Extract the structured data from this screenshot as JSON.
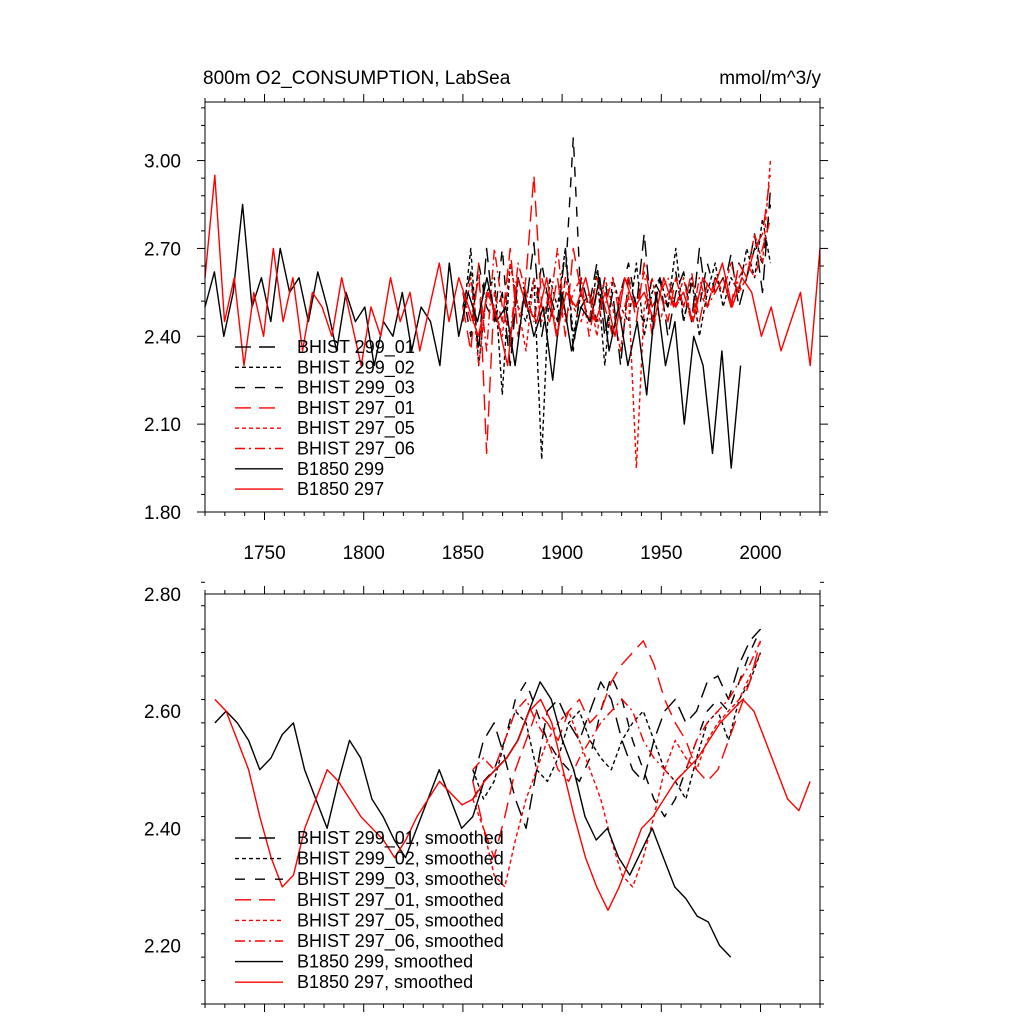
{
  "chart_data": [
    {
      "type": "line",
      "title": "800m O2_CONSUMPTION, LabSea",
      "units": "mmol/m^3/y",
      "xlim": [
        1720,
        2030
      ],
      "ylim": [
        1.8,
        3.2
      ],
      "x_ticks": [
        1750,
        1800,
        1850,
        1900,
        1950,
        2000
      ],
      "x_tick_labels": [
        "1750",
        "1800",
        "1850",
        "1900",
        "1950",
        "2000"
      ],
      "y_ticks": [
        1.8,
        2.1,
        2.4,
        2.7,
        3.0
      ],
      "y_tick_labels": [
        "1.80",
        "2.10",
        "2.40",
        "2.70",
        "3.00"
      ],
      "legend_position": "lower-left",
      "series": [
        {
          "name": "BHIST 299_01",
          "color": "#000000",
          "dash": "long-dash",
          "x_start": 1850,
          "x_end": 2005,
          "values": [
            2.5,
            2.62,
            2.35,
            2.7,
            2.45,
            2.55,
            2.3,
            2.6,
            2.5,
            2.72,
            2.4,
            2.55,
            2.45,
            2.7,
            2.35,
            2.6,
            2.5,
            2.65,
            2.4,
            2.55,
            2.3,
            2.6,
            2.5,
            2.75,
            2.45,
            2.6,
            2.4,
            2.55,
            2.62,
            2.45,
            2.7,
            2.5,
            2.6,
            2.55,
            2.68,
            2.5,
            2.6,
            2.75,
            2.55,
            2.9
          ]
        },
        {
          "name": "BHIST 299_02",
          "color": "#000000",
          "dash": "short-dash",
          "x_start": 1850,
          "x_end": 2005,
          "values": [
            2.45,
            2.7,
            2.3,
            2.55,
            2.6,
            2.2,
            2.65,
            2.5,
            2.45,
            2.6,
            1.98,
            2.6,
            2.5,
            2.7,
            2.4,
            2.55,
            2.45,
            2.62,
            2.3,
            2.6,
            2.5,
            2.45,
            2.65,
            2.4,
            2.55,
            2.6,
            2.5,
            2.7,
            2.45,
            2.6,
            2.4,
            2.55,
            2.65,
            2.5,
            2.6,
            2.55,
            2.7,
            2.6,
            2.8,
            2.65
          ]
        },
        {
          "name": "BHIST 299_03",
          "color": "#000000",
          "dash": "dash-gap",
          "x_start": 1850,
          "x_end": 2005,
          "values": [
            2.55,
            2.4,
            2.65,
            2.5,
            2.45,
            2.7,
            2.35,
            2.6,
            2.55,
            2.45,
            2.65,
            2.5,
            2.4,
            2.6,
            3.08,
            2.5,
            2.55,
            2.45,
            2.6,
            2.4,
            2.55,
            2.65,
            2.5,
            2.45,
            2.6,
            2.55,
            2.5,
            2.62,
            2.45,
            2.58,
            2.5,
            2.65,
            2.55,
            2.6,
            2.5,
            2.65,
            2.6,
            2.7,
            2.65,
            2.85
          ]
        },
        {
          "name": "BHIST 297_01",
          "color": "#ff0000",
          "dash": "long-dash",
          "x_start": 1850,
          "x_end": 2005,
          "values": [
            2.5,
            2.35,
            2.65,
            2.0,
            2.55,
            2.45,
            2.7,
            2.4,
            2.6,
            2.95,
            2.5,
            2.45,
            2.6,
            2.4,
            2.7,
            2.55,
            2.45,
            2.6,
            2.5,
            2.4,
            2.55,
            2.6,
            2.45,
            2.65,
            2.5,
            2.55,
            2.45,
            2.6,
            2.5,
            2.62,
            2.45,
            2.58,
            2.55,
            2.6,
            2.5,
            2.65,
            2.6,
            2.7,
            2.75,
            2.95
          ]
        },
        {
          "name": "BHIST 297_05",
          "color": "#ff0000",
          "dash": "short-dash",
          "x_start": 1850,
          "x_end": 2005,
          "values": [
            2.45,
            2.6,
            2.3,
            2.55,
            2.5,
            2.4,
            2.65,
            2.5,
            2.35,
            2.6,
            2.45,
            2.55,
            2.4,
            2.6,
            2.5,
            2.45,
            2.55,
            2.4,
            2.6,
            2.5,
            2.35,
            2.55,
            1.95,
            2.5,
            2.6,
            2.45,
            2.55,
            2.5,
            2.6,
            2.45,
            2.55,
            2.5,
            2.6,
            2.55,
            2.65,
            2.55,
            2.6,
            2.75,
            2.65,
            3.0
          ]
        },
        {
          "name": "BHIST 297_06",
          "color": "#ff0000",
          "dash": "dash-dot",
          "x_start": 1850,
          "x_end": 2005,
          "values": [
            2.55,
            2.45,
            2.6,
            2.35,
            2.7,
            2.5,
            2.4,
            2.65,
            2.55,
            2.45,
            2.6,
            2.5,
            2.7,
            2.45,
            2.55,
            2.6,
            2.4,
            2.55,
            2.5,
            2.6,
            2.45,
            2.55,
            2.5,
            2.62,
            2.4,
            2.55,
            2.6,
            2.5,
            2.55,
            2.45,
            2.6,
            2.5,
            2.55,
            2.6,
            2.5,
            2.6,
            2.65,
            2.6,
            2.7,
            2.8
          ]
        },
        {
          "name": "B1850 299",
          "color": "#000000",
          "dash": "solid",
          "x_start": 1720,
          "x_end": 1990,
          "values": [
            2.5,
            2.62,
            2.4,
            2.55,
            2.85,
            2.5,
            2.6,
            2.45,
            2.7,
            2.55,
            2.6,
            2.45,
            2.62,
            2.5,
            2.35,
            2.55,
            2.45,
            2.5,
            2.3,
            2.45,
            2.4,
            2.55,
            2.35,
            2.5,
            2.45,
            2.3,
            2.65,
            2.4,
            2.55,
            2.45,
            2.6,
            2.45,
            2.5,
            2.3,
            2.55,
            2.4,
            2.5,
            2.25,
            2.55,
            2.35,
            2.5,
            2.45,
            2.6,
            2.35,
            2.5,
            2.3,
            2.45,
            2.2,
            2.55,
            2.3,
            2.45,
            2.1,
            2.4,
            2.3,
            2.0,
            2.35,
            1.95,
            2.3
          ]
        },
        {
          "name": "B1850 297",
          "color": "#ff0000",
          "dash": "solid",
          "x_start": 1720,
          "x_end": 2030,
          "values": [
            2.6,
            2.95,
            2.45,
            2.6,
            2.3,
            2.55,
            2.4,
            2.7,
            2.45,
            2.6,
            2.35,
            2.55,
            2.5,
            2.4,
            2.6,
            2.45,
            2.3,
            2.5,
            2.4,
            2.6,
            2.45,
            2.55,
            2.35,
            2.5,
            2.65,
            2.45,
            2.6,
            2.5,
            2.4,
            2.55,
            2.45,
            2.3,
            2.6,
            2.5,
            2.45,
            2.6,
            2.4,
            2.55,
            2.5,
            2.6,
            2.45,
            2.55,
            2.4,
            2.6,
            2.5,
            2.55,
            2.45,
            2.6,
            2.5,
            2.55,
            2.45,
            2.6,
            2.55,
            2.65,
            2.5,
            2.6,
            2.55,
            2.4,
            2.5,
            2.35,
            2.45,
            2.55,
            2.3,
            2.7
          ]
        }
      ]
    },
    {
      "type": "line",
      "xlim": [
        1720,
        2030
      ],
      "ylim": [
        2.1,
        2.8
      ],
      "x_ticks": [
        1750,
        1800,
        1850,
        1900,
        1950,
        2000
      ],
      "y_ticks": [
        2.2,
        2.4,
        2.6,
        2.8
      ],
      "y_tick_labels": [
        "2.20",
        "2.40",
        "2.60",
        "2.80"
      ],
      "legend_position": "lower-left",
      "series": [
        {
          "name": "BHIST 299_01, smoothed",
          "color": "#000000",
          "dash": "long-dash",
          "x_start": 1855,
          "x_end": 2000,
          "values": [
            2.48,
            2.55,
            2.58,
            2.52,
            2.45,
            2.4,
            2.5,
            2.6,
            2.62,
            2.58,
            2.55,
            2.6,
            2.65,
            2.62,
            2.55,
            2.5,
            2.48,
            2.55,
            2.6,
            2.62,
            2.58,
            2.6,
            2.65,
            2.66,
            2.62,
            2.68,
            2.72,
            2.74
          ]
        },
        {
          "name": "BHIST 299_02, smoothed",
          "color": "#000000",
          "dash": "short-dash",
          "x_start": 1855,
          "x_end": 2000,
          "values": [
            2.5,
            2.45,
            2.48,
            2.55,
            2.6,
            2.58,
            2.5,
            2.48,
            2.52,
            2.58,
            2.6,
            2.55,
            2.52,
            2.5,
            2.55,
            2.58,
            2.6,
            2.55,
            2.5,
            2.48,
            2.45,
            2.52,
            2.58,
            2.6,
            2.55,
            2.62,
            2.65,
            2.7
          ]
        },
        {
          "name": "BHIST 299_03, smoothed",
          "color": "#000000",
          "dash": "dash-gap",
          "x_start": 1855,
          "x_end": 2000,
          "values": [
            2.45,
            2.48,
            2.5,
            2.55,
            2.62,
            2.65,
            2.6,
            2.55,
            2.52,
            2.5,
            2.48,
            2.52,
            2.6,
            2.66,
            2.62,
            2.55,
            2.5,
            2.45,
            2.42,
            2.45,
            2.5,
            2.55,
            2.6,
            2.62,
            2.6,
            2.65,
            2.7,
            2.74
          ]
        },
        {
          "name": "BHIST 297_01, smoothed",
          "color": "#ff0000",
          "dash": "long-dash",
          "x_start": 1855,
          "x_end": 2000,
          "values": [
            2.48,
            2.4,
            2.35,
            2.42,
            2.5,
            2.55,
            2.6,
            2.58,
            2.55,
            2.6,
            2.62,
            2.58,
            2.6,
            2.65,
            2.68,
            2.7,
            2.72,
            2.68,
            2.62,
            2.58,
            2.55,
            2.5,
            2.48,
            2.5,
            2.55,
            2.6,
            2.65,
            2.72
          ]
        },
        {
          "name": "BHIST 297_05, smoothed",
          "color": "#ff0000",
          "dash": "short-dash",
          "x_start": 1855,
          "x_end": 2000,
          "values": [
            2.45,
            2.4,
            2.32,
            2.3,
            2.38,
            2.45,
            2.5,
            2.55,
            2.58,
            2.6,
            2.55,
            2.5,
            2.45,
            2.38,
            2.32,
            2.3,
            2.35,
            2.42,
            2.5,
            2.55,
            2.52,
            2.5,
            2.55,
            2.58,
            2.6,
            2.62,
            2.66,
            2.7
          ]
        },
        {
          "name": "BHIST 297_06, smoothed",
          "color": "#ff0000",
          "dash": "dash-dot",
          "x_start": 1855,
          "x_end": 2000,
          "values": [
            2.5,
            2.52,
            2.5,
            2.55,
            2.6,
            2.62,
            2.58,
            2.55,
            2.5,
            2.48,
            2.52,
            2.55,
            2.58,
            2.6,
            2.62,
            2.6,
            2.55,
            2.52,
            2.5,
            2.48,
            2.5,
            2.55,
            2.58,
            2.6,
            2.62,
            2.65,
            2.68,
            2.72
          ]
        },
        {
          "name": "B1850 299, smoothed",
          "color": "#000000",
          "dash": "solid",
          "x_start": 1725,
          "x_end": 1985,
          "values": [
            2.58,
            2.6,
            2.58,
            2.55,
            2.5,
            2.52,
            2.56,
            2.58,
            2.5,
            2.45,
            2.4,
            2.48,
            2.55,
            2.52,
            2.45,
            2.42,
            2.38,
            2.35,
            2.4,
            2.45,
            2.5,
            2.45,
            2.4,
            2.42,
            2.48,
            2.5,
            2.52,
            2.55,
            2.6,
            2.65,
            2.62,
            2.55,
            2.5,
            2.42,
            2.38,
            2.4,
            2.35,
            2.32,
            2.36,
            2.4,
            2.35,
            2.3,
            2.28,
            2.25,
            2.24,
            2.2,
            2.18
          ]
        },
        {
          "name": "B1850 297, smoothed",
          "color": "#ff0000",
          "dash": "solid",
          "x_start": 1725,
          "x_end": 2025,
          "values": [
            2.62,
            2.6,
            2.55,
            2.5,
            2.42,
            2.35,
            2.3,
            2.32,
            2.4,
            2.45,
            2.5,
            2.48,
            2.45,
            2.42,
            2.4,
            2.38,
            2.35,
            2.38,
            2.42,
            2.45,
            2.48,
            2.46,
            2.44,
            2.45,
            2.48,
            2.5,
            2.52,
            2.55,
            2.6,
            2.62,
            2.58,
            2.5,
            2.42,
            2.35,
            2.3,
            2.26,
            2.3,
            2.35,
            2.4,
            2.42,
            2.45,
            2.48,
            2.5,
            2.52,
            2.55,
            2.58,
            2.6,
            2.62,
            2.6,
            2.55,
            2.5,
            2.45,
            2.43,
            2.48
          ]
        }
      ]
    }
  ]
}
